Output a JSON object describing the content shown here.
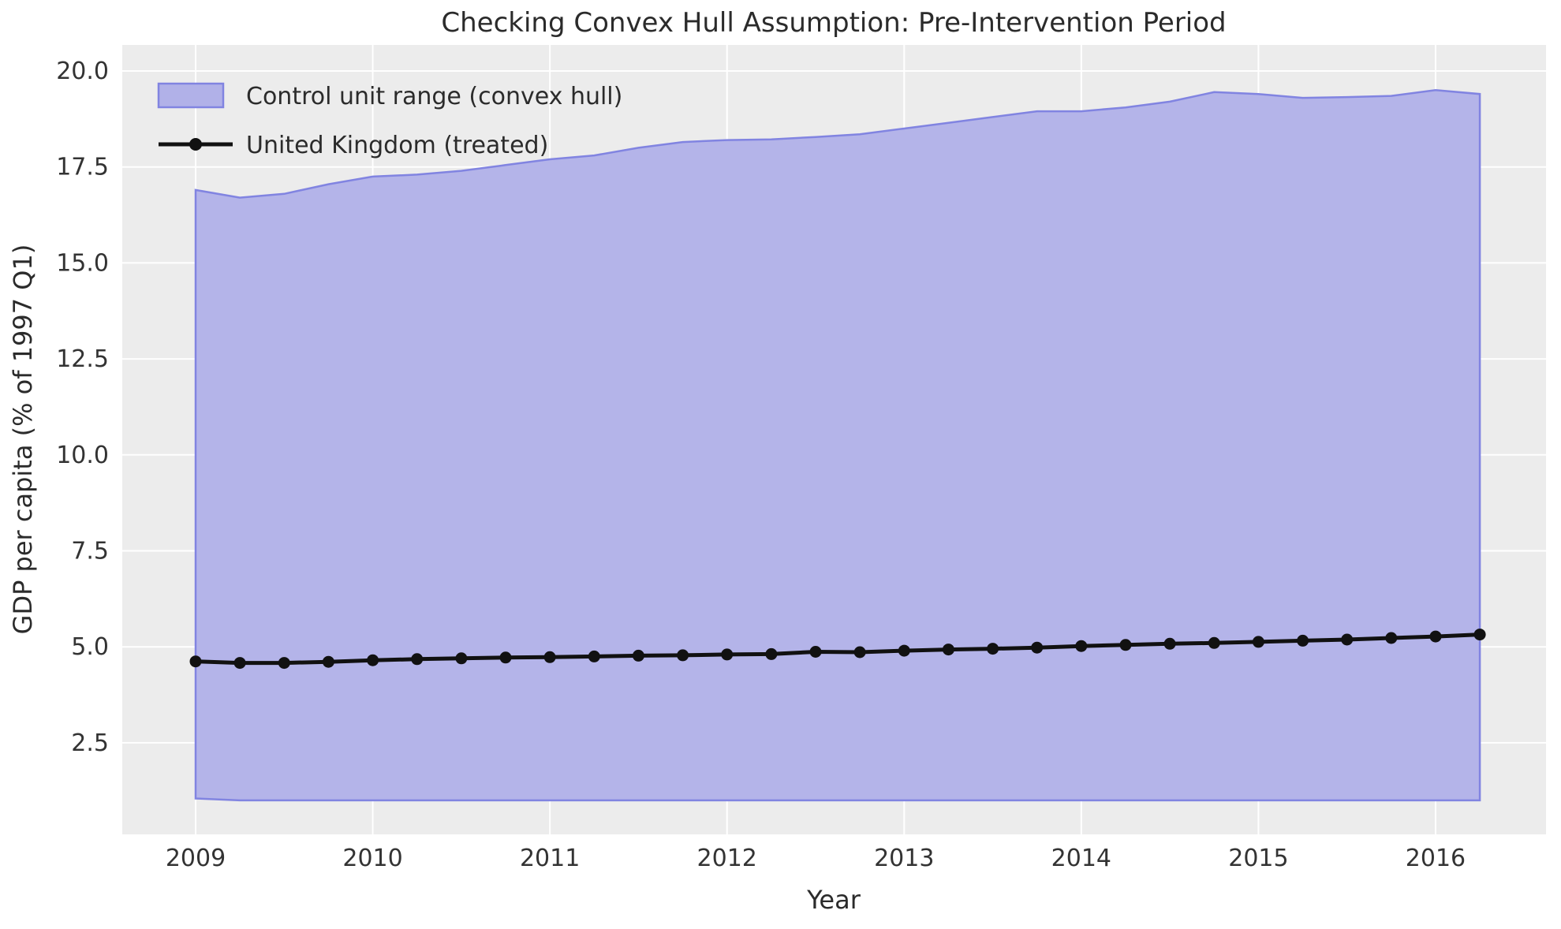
{
  "chart_data": {
    "type": "area",
    "title": "Checking Convex Hull Assumption: Pre-Intervention Period",
    "xlabel": "Year",
    "ylabel": "GDP per capita (% of 1997 Q1)",
    "x": [
      2009.0,
      2009.25,
      2009.5,
      2009.75,
      2010.0,
      2010.25,
      2010.5,
      2010.75,
      2011.0,
      2011.25,
      2011.5,
      2011.75,
      2012.0,
      2012.25,
      2012.5,
      2012.75,
      2013.0,
      2013.25,
      2013.5,
      2013.75,
      2014.0,
      2014.25,
      2014.5,
      2014.75,
      2015.0,
      2015.25,
      2015.5,
      2015.75,
      2016.0,
      2016.25
    ],
    "series": [
      {
        "name": "Control unit range (convex hull)",
        "kind": "band",
        "upper": [
          16.9,
          16.7,
          16.8,
          17.05,
          17.25,
          17.3,
          17.4,
          17.55,
          17.7,
          17.8,
          18.0,
          18.15,
          18.2,
          18.22,
          18.28,
          18.35,
          18.5,
          18.65,
          18.8,
          18.95,
          18.95,
          19.05,
          19.2,
          19.45,
          19.4,
          19.3,
          19.32,
          19.35,
          19.5,
          19.4
        ],
        "lower": [
          1.05,
          1.0,
          1.0,
          1.0,
          1.0,
          1.0,
          1.0,
          1.0,
          1.0,
          1.0,
          1.0,
          1.0,
          1.0,
          1.0,
          1.0,
          1.0,
          1.0,
          1.0,
          1.0,
          1.0,
          1.0,
          1.0,
          1.0,
          1.0,
          1.0,
          1.0,
          1.0,
          1.0,
          1.0,
          1.0
        ],
        "fill_color": "#b1b1e8",
        "edge_color": "#8184e1"
      },
      {
        "name": "United Kingdom (treated)",
        "kind": "line_markers",
        "values": [
          4.62,
          4.58,
          4.58,
          4.61,
          4.65,
          4.68,
          4.7,
          4.72,
          4.73,
          4.75,
          4.77,
          4.78,
          4.8,
          4.81,
          4.87,
          4.86,
          4.9,
          4.93,
          4.95,
          4.98,
          5.02,
          5.05,
          5.08,
          5.1,
          5.13,
          5.16,
          5.19,
          5.23,
          5.27,
          5.32
        ],
        "color": "#111111"
      }
    ],
    "xticks": [
      "2009",
      "2010",
      "2011",
      "2012",
      "2013",
      "2014",
      "2015",
      "2016"
    ],
    "xtick_years": [
      2009,
      2010,
      2011,
      2012,
      2013,
      2014,
      2015,
      2016
    ],
    "yticks": [
      "2.5",
      "5.0",
      "7.5",
      "10.0",
      "12.5",
      "15.0",
      "17.5",
      "20.0"
    ],
    "ytick_values": [
      2.5,
      5.0,
      7.5,
      10.0,
      12.5,
      15.0,
      17.5,
      20.0
    ],
    "xlim": [
      2008.6375,
      2016.6125
    ],
    "ylim": [
      0.075,
      20.425
    ],
    "grid": "white on light gray",
    "legend_position": "upper left",
    "plot_bg_color": "#ececec",
    "grid_color": "#ffffff"
  },
  "legend": {
    "band_label": "Control unit range (convex hull)",
    "line_label": "United Kingdom (treated)"
  }
}
